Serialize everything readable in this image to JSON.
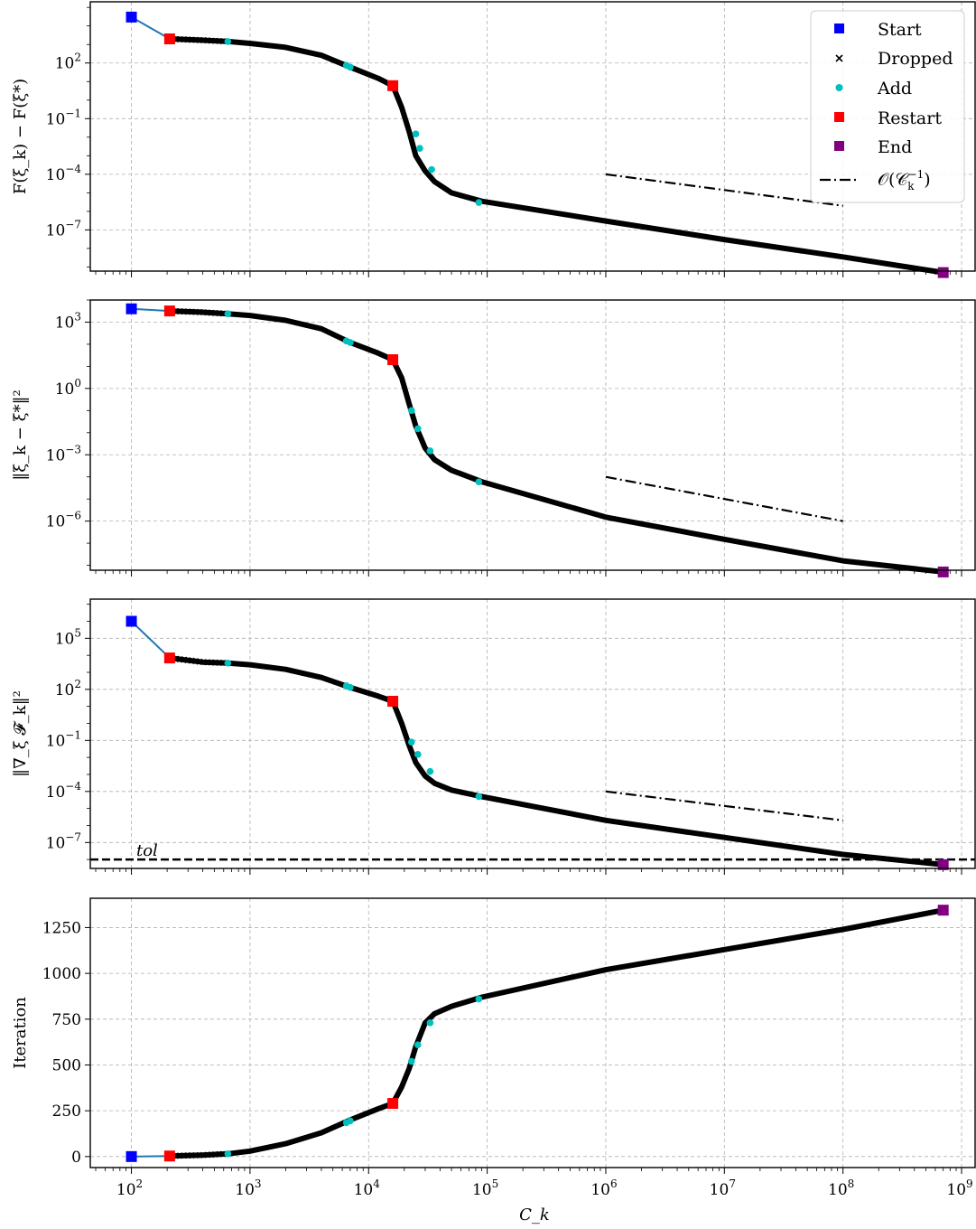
{
  "chart_data": [
    {
      "type": "line",
      "ylabel": "F(ξ_k) − F(ξ*)",
      "yscale": "log",
      "xscale": "log",
      "xlim": [
        45,
        1300000000.0
      ],
      "ylim": [
        6e-10,
        200000.0
      ],
      "yticks": [
        {
          "value": 100,
          "base": "10",
          "exp": "2"
        },
        {
          "value": 0.1,
          "base": "10",
          "exp": "−1"
        },
        {
          "value": 0.0001,
          "base": "10",
          "exp": "−4"
        },
        {
          "value": 1e-07,
          "base": "10",
          "exp": "−7"
        }
      ],
      "series": [
        {
          "name": "trajectory",
          "x": [
            100,
            210,
            400,
            650,
            1000,
            2000,
            4000,
            7000,
            12000,
            16000,
            19000,
            22000,
            25000,
            30000,
            36000,
            50000,
            90000,
            1000000.0,
            10000000.0,
            100000000.0,
            700000000.0
          ],
          "y": [
            30000,
            2000,
            1700,
            1450,
            1150,
            700,
            260,
            60,
            15,
            6,
            0.4,
            0.02,
            0.001,
            0.00015,
            4e-05,
            1e-05,
            3.5e-06,
            3e-07,
            3e-08,
            3.5e-09,
            5e-10
          ]
        },
        {
          "name": "Start",
          "x": [
            100
          ],
          "y": [
            30000
          ]
        },
        {
          "name": "Restart",
          "x": [
            210,
            16000
          ],
          "y": [
            2000,
            6
          ]
        },
        {
          "name": "Add",
          "x": [
            650,
            6500,
            7000,
            25000,
            27000,
            34000,
            85000
          ],
          "y": [
            1450,
            75,
            60,
            0.015,
            0.0025,
            0.00018,
            3e-06
          ]
        },
        {
          "name": "End",
          "x": [
            700000000.0
          ],
          "y": [
            5e-10
          ]
        },
        {
          "name": "O(C_k^-1)",
          "x": [
            1000000.0,
            100000000.0
          ],
          "y": [
            0.0001,
            2e-06
          ]
        }
      ]
    },
    {
      "type": "line",
      "ylabel": "‖ξ_k − ξ*‖²",
      "yscale": "log",
      "xscale": "log",
      "xlim": [
        45,
        1300000000.0
      ],
      "ylim": [
        6e-09,
        10000.0
      ],
      "yticks": [
        {
          "value": 1000,
          "base": "10",
          "exp": "3"
        },
        {
          "value": 1,
          "base": "10",
          "exp": "0"
        },
        {
          "value": 0.001,
          "base": "10",
          "exp": "−3"
        },
        {
          "value": 1e-06,
          "base": "10",
          "exp": "−6"
        }
      ],
      "series": [
        {
          "name": "trajectory",
          "x": [
            100,
            210,
            400,
            650,
            1000,
            2000,
            4000,
            7000,
            12000,
            16000,
            19000,
            22000,
            25000,
            30000,
            36000,
            50000,
            90000,
            1000000.0,
            10000000.0,
            100000000.0,
            700000000.0
          ],
          "y": [
            4000,
            3200,
            2800,
            2400,
            2000,
            1200,
            500,
            120,
            40,
            20,
            3,
            0.2,
            0.02,
            0.002,
            0.0006,
            0.0002,
            6e-05,
            1.5e-06,
            1.5e-07,
            1.6e-08,
            5e-09
          ]
        },
        {
          "name": "Start",
          "x": [
            100
          ],
          "y": [
            4000
          ]
        },
        {
          "name": "Restart",
          "x": [
            210,
            16000
          ],
          "y": [
            3200,
            20
          ]
        },
        {
          "name": "Add",
          "x": [
            650,
            6500,
            7000,
            23000,
            26000,
            33000,
            85000
          ],
          "y": [
            2400,
            140,
            120,
            0.1,
            0.015,
            0.0015,
            6e-05
          ]
        },
        {
          "name": "End",
          "x": [
            700000000.0
          ],
          "y": [
            5e-09
          ]
        },
        {
          "name": "O(C_k^-1)",
          "x": [
            1000000.0,
            100000000.0
          ],
          "y": [
            0.0001,
            1e-06
          ]
        }
      ]
    },
    {
      "type": "line",
      "ylabel": "‖∇_ξ 𝓕_k‖²",
      "yscale": "log",
      "xscale": "log",
      "xlim": [
        45,
        1300000000.0
      ],
      "ylim": [
        3e-09,
        20000000.0
      ],
      "yticks": [
        {
          "value": 100000,
          "base": "10",
          "exp": "5"
        },
        {
          "value": 100,
          "base": "10",
          "exp": "2"
        },
        {
          "value": 0.1,
          "base": "10",
          "exp": "−1"
        },
        {
          "value": 0.0001,
          "base": "10",
          "exp": "−4"
        },
        {
          "value": 1e-07,
          "base": "10",
          "exp": "−7"
        }
      ],
      "annotation": "tol",
      "tol": 1e-08,
      "series": [
        {
          "name": "trajectory",
          "x": [
            100,
            210,
            400,
            650,
            1000,
            2000,
            4000,
            7000,
            12000,
            16000,
            19000,
            22000,
            25000,
            30000,
            36000,
            50000,
            90000,
            1000000.0,
            10000000.0,
            100000000.0,
            700000000.0
          ],
          "y": [
            1000000.0,
            7000,
            4000,
            3500,
            2800,
            1500,
            500,
            130,
            40,
            20,
            1,
            0.05,
            0.005,
            0.0008,
            0.0003,
            0.00012,
            5e-05,
            2e-06,
            2e-07,
            2e-08,
            5e-09
          ]
        },
        {
          "name": "Start",
          "x": [
            100
          ],
          "y": [
            1000000.0
          ]
        },
        {
          "name": "Restart",
          "x": [
            210,
            16000
          ],
          "y": [
            7000,
            20
          ]
        },
        {
          "name": "Add",
          "x": [
            650,
            6500,
            7000,
            23000,
            26000,
            33000,
            85000
          ],
          "y": [
            3500,
            160,
            130,
            0.08,
            0.015,
            0.0015,
            5e-05
          ]
        },
        {
          "name": "End",
          "x": [
            700000000.0
          ],
          "y": [
            5e-09
          ]
        },
        {
          "name": "O(C_k^-1)",
          "x": [
            1000000.0,
            100000000.0
          ],
          "y": [
            0.0001,
            2e-06
          ]
        }
      ]
    },
    {
      "type": "line",
      "ylabel": "Iteration",
      "xlabel": "C_k",
      "yscale": "linear",
      "xscale": "log",
      "xlim": [
        45,
        1300000000.0
      ],
      "ylim": [
        -60,
        1410
      ],
      "yticks": [
        {
          "value": 0,
          "label": "0"
        },
        {
          "value": 250,
          "label": "250"
        },
        {
          "value": 500,
          "label": "500"
        },
        {
          "value": 750,
          "label": "750"
        },
        {
          "value": 1000,
          "label": "1000"
        },
        {
          "value": 1250,
          "label": "1250"
        }
      ],
      "xticks": [
        {
          "value": 100,
          "base": "10",
          "exp": "2"
        },
        {
          "value": 1000,
          "base": "10",
          "exp": "3"
        },
        {
          "value": 10000,
          "base": "10",
          "exp": "4"
        },
        {
          "value": 100000,
          "base": "10",
          "exp": "5"
        },
        {
          "value": 1000000,
          "base": "10",
          "exp": "6"
        },
        {
          "value": 10000000,
          "base": "10",
          "exp": "7"
        },
        {
          "value": 100000000,
          "base": "10",
          "exp": "8"
        },
        {
          "value": 1000000000,
          "base": "10",
          "exp": "9"
        }
      ],
      "series": [
        {
          "name": "trajectory",
          "x": [
            100,
            210,
            400,
            650,
            1000,
            2000,
            4000,
            7000,
            12000,
            16000,
            19000,
            22000,
            25000,
            30000,
            36000,
            50000,
            90000,
            1000000.0,
            10000000.0,
            100000000.0,
            700000000.0
          ],
          "y": [
            0,
            3,
            8,
            15,
            30,
            70,
            130,
            200,
            260,
            290,
            380,
            480,
            600,
            730,
            780,
            820,
            870,
            1020,
            1130,
            1240,
            1345
          ]
        },
        {
          "name": "Start",
          "x": [
            100
          ],
          "y": [
            0
          ]
        },
        {
          "name": "Restart",
          "x": [
            210,
            16000
          ],
          "y": [
            3,
            290
          ]
        },
        {
          "name": "Add",
          "x": [
            650,
            6500,
            7000,
            23000,
            26000,
            33000,
            85000
          ],
          "y": [
            15,
            185,
            195,
            520,
            610,
            730,
            860
          ]
        },
        {
          "name": "End",
          "x": [
            700000000.0
          ],
          "y": [
            1345
          ]
        }
      ]
    }
  ],
  "legend": {
    "placement": "top-right",
    "entries": [
      {
        "label": "Start",
        "color": "#0000ff",
        "marker": "square"
      },
      {
        "label": "Dropped",
        "color": "#000000",
        "marker": "x"
      },
      {
        "label": "Add",
        "color": "#00bfbf",
        "marker": "dot"
      },
      {
        "label": "Restart",
        "color": "#ff0000",
        "marker": "square"
      },
      {
        "label": "End",
        "color": "#800080",
        "marker": "square"
      },
      {
        "label": "𝒪(𝒞",
        "sub": "k",
        "sup": "−1",
        "close": ")",
        "marker": "dashdot"
      }
    ]
  },
  "colors": {
    "start": "#0000ff",
    "restart": "#ff0000",
    "add": "#00bfbf",
    "end": "#800080",
    "link": "#1f77b4",
    "trajectory": "#000000",
    "grid": "#b0b0b0"
  }
}
